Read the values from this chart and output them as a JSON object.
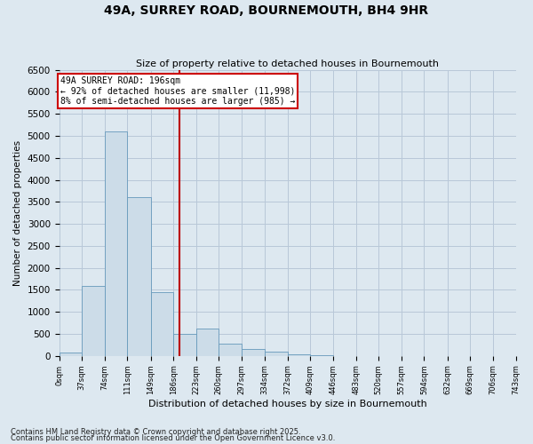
{
  "title": "49A, SURREY ROAD, BOURNEMOUTH, BH4 9HR",
  "subtitle": "Size of property relative to detached houses in Bournemouth",
  "xlabel": "Distribution of detached houses by size in Bournemouth",
  "ylabel": "Number of detached properties",
  "bar_edges": [
    0,
    37,
    74,
    111,
    149,
    186,
    223,
    260,
    297,
    334,
    372,
    409,
    446,
    483,
    520,
    557,
    594,
    632,
    669,
    706,
    743
  ],
  "bar_heights": [
    70,
    1600,
    5100,
    3600,
    1450,
    500,
    620,
    280,
    150,
    90,
    45,
    15,
    5,
    3,
    2,
    1,
    0,
    0,
    0,
    0
  ],
  "bar_color": "#ccdce8",
  "bar_edge_color": "#6699bb",
  "property_size": 196,
  "property_label": "49A SURREY ROAD: 196sqm",
  "pct_smaller": "92% of detached houses are smaller (11,998)",
  "pct_larger": "8% of semi-detached houses are larger (985)",
  "vline_color": "#bb0000",
  "annotation_box_color": "#cc0000",
  "annotation_text_color": "#000000",
  "ylim": [
    0,
    6500
  ],
  "yticks": [
    0,
    500,
    1000,
    1500,
    2000,
    2500,
    3000,
    3500,
    4000,
    4500,
    5000,
    5500,
    6000,
    6500
  ],
  "grid_color": "#b8c8d8",
  "bg_color": "#dde8f0",
  "footer1": "Contains HM Land Registry data © Crown copyright and database right 2025.",
  "footer2": "Contains public sector information licensed under the Open Government Licence v3.0."
}
